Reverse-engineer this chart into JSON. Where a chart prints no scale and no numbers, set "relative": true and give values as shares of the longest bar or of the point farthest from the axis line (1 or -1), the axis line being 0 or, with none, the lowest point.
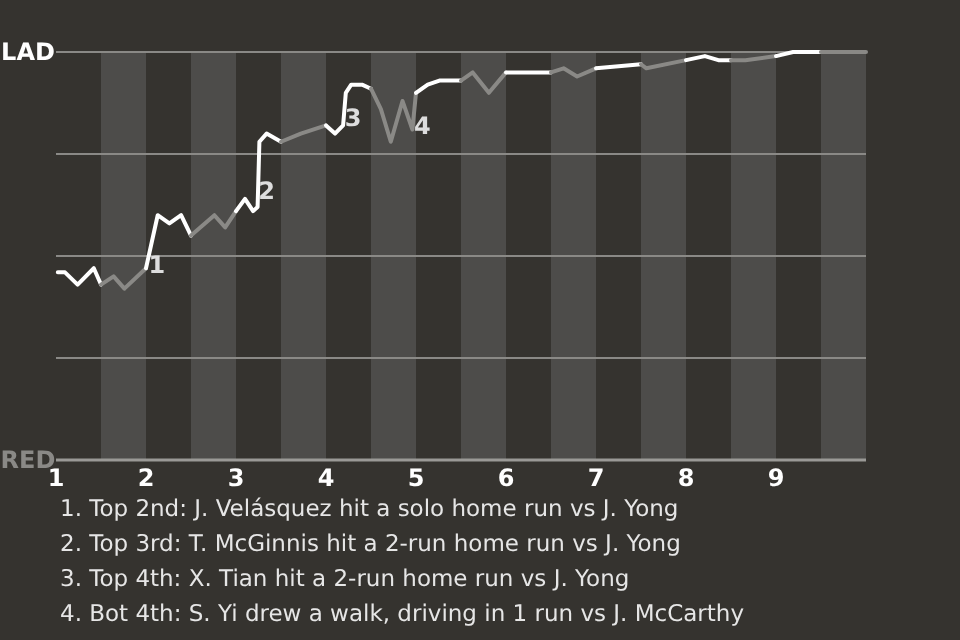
{
  "chart_data": {
    "type": "line",
    "relative": true,
    "xlim": [
      1,
      10
    ],
    "xticks": [
      1,
      2,
      3,
      4,
      5,
      6,
      7,
      8,
      9
    ],
    "grid": "y",
    "marker": "none",
    "line_style": "solid",
    "series": [
      {
        "color": "#ffffff",
        "x": [
          1.02,
          1.1,
          1.24,
          1.42,
          1.5
        ],
        "values": [
          0.46,
          0.46,
          0.43,
          0.47,
          0.43
        ]
      },
      {
        "color": "#8a8986",
        "x": [
          1.5,
          1.64,
          1.76,
          2.0
        ],
        "values": [
          0.43,
          0.45,
          0.42,
          0.47
        ]
      },
      {
        "color": "#ffffff",
        "x": [
          2.0,
          2.13,
          2.26,
          2.39,
          2.5
        ],
        "values": [
          0.47,
          0.6,
          0.58,
          0.6,
          0.55
        ]
      },
      {
        "color": "#8a8986",
        "x": [
          2.5,
          2.76,
          2.88,
          3.0
        ],
        "values": [
          0.55,
          0.6,
          0.57,
          0.61
        ]
      },
      {
        "color": "#ffffff",
        "x": [
          3.0,
          3.1,
          3.19,
          3.24,
          3.26,
          3.34,
          3.5
        ],
        "values": [
          0.61,
          0.64,
          0.61,
          0.62,
          0.78,
          0.8,
          0.78
        ]
      },
      {
        "color": "#8a8986",
        "x": [
          3.5,
          3.72,
          4.0
        ],
        "values": [
          0.78,
          0.8,
          0.82
        ]
      },
      {
        "color": "#ffffff",
        "x": [
          4.0,
          4.1,
          4.19,
          4.22,
          4.28,
          4.4,
          4.5
        ],
        "values": [
          0.82,
          0.8,
          0.82,
          0.9,
          0.92,
          0.92,
          0.91
        ]
      },
      {
        "color": "#8a8986",
        "x": [
          4.5,
          4.61,
          4.72,
          4.85,
          4.96,
          5.0
        ],
        "values": [
          0.91,
          0.86,
          0.78,
          0.88,
          0.81,
          0.9
        ]
      },
      {
        "color": "#ffffff",
        "x": [
          5.0,
          5.13,
          5.26,
          5.37,
          5.5
        ],
        "values": [
          0.9,
          0.92,
          0.93,
          0.93,
          0.93
        ]
      },
      {
        "color": "#8a8986",
        "x": [
          5.5,
          5.63,
          5.81,
          6.0
        ],
        "values": [
          0.93,
          0.95,
          0.9,
          0.95
        ]
      },
      {
        "color": "#ffffff",
        "x": [
          6.0,
          6.07,
          6.14,
          6.5
        ],
        "values": [
          0.95,
          0.95,
          0.95,
          0.95
        ]
      },
      {
        "color": "#8a8986",
        "x": [
          6.5,
          6.64,
          6.79,
          7.0
        ],
        "values": [
          0.95,
          0.96,
          0.94,
          0.96
        ]
      },
      {
        "color": "#ffffff",
        "x": [
          7.0,
          7.5
        ],
        "values": [
          0.96,
          0.97
        ]
      },
      {
        "color": "#8a8986",
        "x": [
          7.5,
          7.56,
          8.0
        ],
        "values": [
          0.97,
          0.96,
          0.98
        ]
      },
      {
        "color": "#ffffff",
        "x": [
          8.0,
          8.21,
          8.36,
          8.5
        ],
        "values": [
          0.98,
          0.99,
          0.98,
          0.98
        ]
      },
      {
        "color": "#8a8986",
        "x": [
          8.5,
          8.66,
          9.0
        ],
        "values": [
          0.98,
          0.98,
          0.99
        ]
      },
      {
        "color": "#ffffff",
        "x": [
          9.0,
          9.19,
          9.5
        ],
        "values": [
          0.99,
          1.0,
          1.0
        ]
      },
      {
        "color": "#8a8986",
        "x": [
          9.5,
          10.0
        ],
        "values": [
          1.0,
          1.0
        ]
      }
    ],
    "bands": [
      {
        "axis": "x",
        "from": 1.5,
        "to": 2,
        "color": "#4d4c4a"
      },
      {
        "axis": "x",
        "from": 2.5,
        "to": 3,
        "color": "#4d4c4a"
      },
      {
        "axis": "x",
        "from": 3.5,
        "to": 4,
        "color": "#4d4c4a"
      },
      {
        "axis": "x",
        "from": 4.5,
        "to": 5,
        "color": "#4d4c4a"
      },
      {
        "axis": "x",
        "from": 5.5,
        "to": 6,
        "color": "#4d4c4a"
      },
      {
        "axis": "x",
        "from": 6.5,
        "to": 7,
        "color": "#4d4c4a"
      },
      {
        "axis": "x",
        "from": 7.5,
        "to": 8,
        "color": "#4d4c4a"
      },
      {
        "axis": "x",
        "from": 8.5,
        "to": 9,
        "color": "#4d4c4a"
      },
      {
        "axis": "x",
        "from": 9.5,
        "to": 10,
        "color": "#4d4c4a"
      }
    ],
    "annotations": [
      "LAD",
      "RED",
      {
        "text": "1",
        "x": 2.12,
        "y": 0.48
      },
      {
        "text": "2",
        "x": 3.34,
        "y": 0.66
      },
      {
        "text": "3",
        "x": 4.3,
        "y": 0.84
      },
      {
        "text": "4",
        "x": 5.07,
        "y": 0.82
      },
      "1. Top 2nd: J. Velásquez hit a solo home run vs J. Yong",
      "2. Top 3rd: T. McGinnis hit a 2-run home run vs J. Yong",
      "3. Top 4th: X. Tian hit a 2-run home run vs J. Yong",
      "4. Bot 4th: S. Yi drew a walk, driving in 1 run vs J. McCarthy"
    ]
  }
}
